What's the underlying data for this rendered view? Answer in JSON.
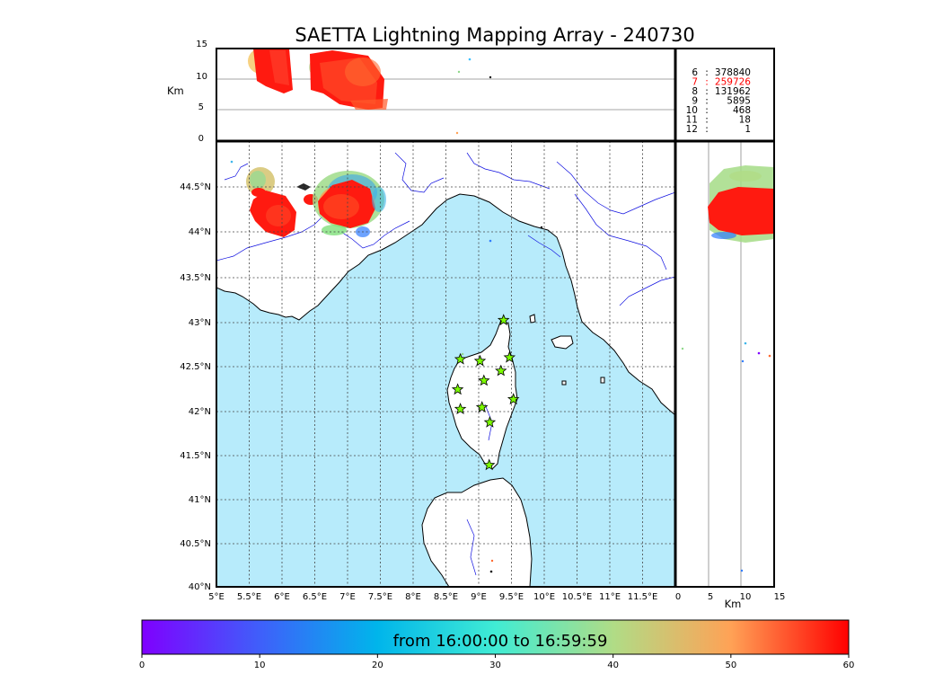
{
  "title": "SAETTA Lightning Mapping Array - 240730",
  "altitude_axis": {
    "label": "Km",
    "ticks": [
      "15",
      "10",
      "5",
      "0"
    ]
  },
  "lon_ticks": [
    "5°E",
    "5.5°E",
    "6°E",
    "6.5°E",
    "7°E",
    "7.5°E",
    "8°E",
    "8.5°E",
    "9°E",
    "9.5°E",
    "10°E",
    "10.5°E",
    "11°E",
    "11.5°E"
  ],
  "lat_ticks": [
    "44.5°N",
    "44°N",
    "43.5°N",
    "43°N",
    "42.5°N",
    "42°N",
    "41.5°N",
    "41°N",
    "40.5°N",
    "40°N"
  ],
  "side_axis": {
    "label": "Km",
    "ticks": [
      "0",
      "5",
      "10",
      "15"
    ]
  },
  "station_counts": [
    {
      "stations": "6",
      "count": "378840",
      "highlight": false
    },
    {
      "stations": "7",
      "count": "259726",
      "highlight": true
    },
    {
      "stations": "8",
      "count": "131962",
      "highlight": false
    },
    {
      "stations": "9",
      "count": "5895",
      "highlight": false
    },
    {
      "stations": "10",
      "count": "468",
      "highlight": false
    },
    {
      "stations": "11",
      "count": "18",
      "highlight": false
    },
    {
      "stations": "12",
      "count": "1",
      "highlight": false
    }
  ],
  "stations_lonlat": [
    [
      9.38,
      43.0
    ],
    [
      8.72,
      42.56
    ],
    [
      9.02,
      42.54
    ],
    [
      9.47,
      42.58
    ],
    [
      9.34,
      42.43
    ],
    [
      9.08,
      42.32
    ],
    [
      8.68,
      42.22
    ],
    [
      9.53,
      42.11
    ],
    [
      8.72,
      42.0
    ],
    [
      9.05,
      42.02
    ],
    [
      9.17,
      41.85
    ],
    [
      9.16,
      41.37
    ]
  ],
  "colorbar": {
    "label": "from 16:00:00 to 16:59:59",
    "ticks": [
      "0",
      "10",
      "20",
      "30",
      "40",
      "50",
      "60"
    ],
    "range": [
      0,
      60
    ]
  },
  "colors": {
    "sea": "#b7ebfb",
    "land": "#ffffff",
    "river": "#1010e0",
    "station_fill": "#7cfc00"
  }
}
